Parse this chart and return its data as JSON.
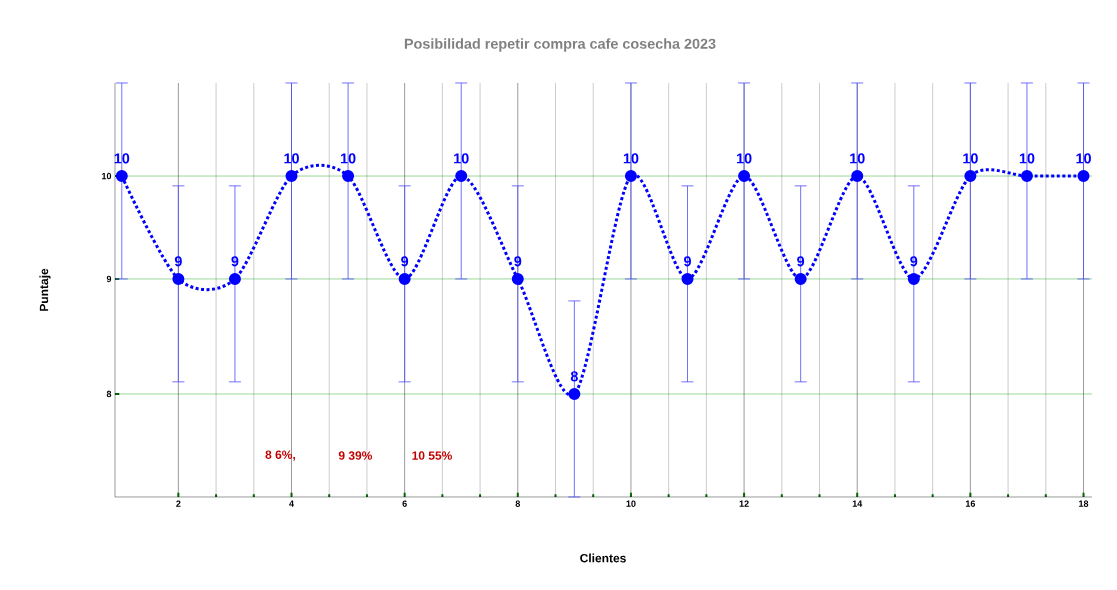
{
  "chart_data": {
    "type": "line",
    "title": "Posibilidad repetir compra cafe cosecha 2023",
    "xlabel": "Clientes",
    "ylabel": "Puntaje",
    "x": [
      1,
      2,
      3,
      4,
      5,
      6,
      7,
      8,
      9,
      10,
      11,
      12,
      13,
      14,
      15,
      16,
      17,
      18
    ],
    "series": [
      {
        "color": "#0000ff",
        "values": [
          10,
          9,
          9,
          10,
          10,
          9,
          10,
          9,
          8,
          10,
          9,
          10,
          9,
          10,
          9,
          10,
          10,
          10
        ],
        "errors": [
          1,
          0.9,
          0.9,
          1,
          1,
          0.9,
          1,
          0.9,
          0.8,
          1,
          0.9,
          1,
          0.9,
          1,
          0.9,
          1,
          1,
          1
        ]
      }
    ],
    "xlim": [
      0.88,
      18.15
    ],
    "xticks": [
      2,
      4,
      6,
      8,
      10,
      12,
      14,
      16,
      18
    ],
    "ylim": [
      7.2,
      11
    ],
    "yticks": [
      8,
      9,
      10
    ],
    "log": "y",
    "grid": true,
    "marker": "circle",
    "line_style": "dotted",
    "data_labels": true,
    "annotations": [
      "8 6%,",
      "9 39%",
      "10 55%"
    ]
  }
}
